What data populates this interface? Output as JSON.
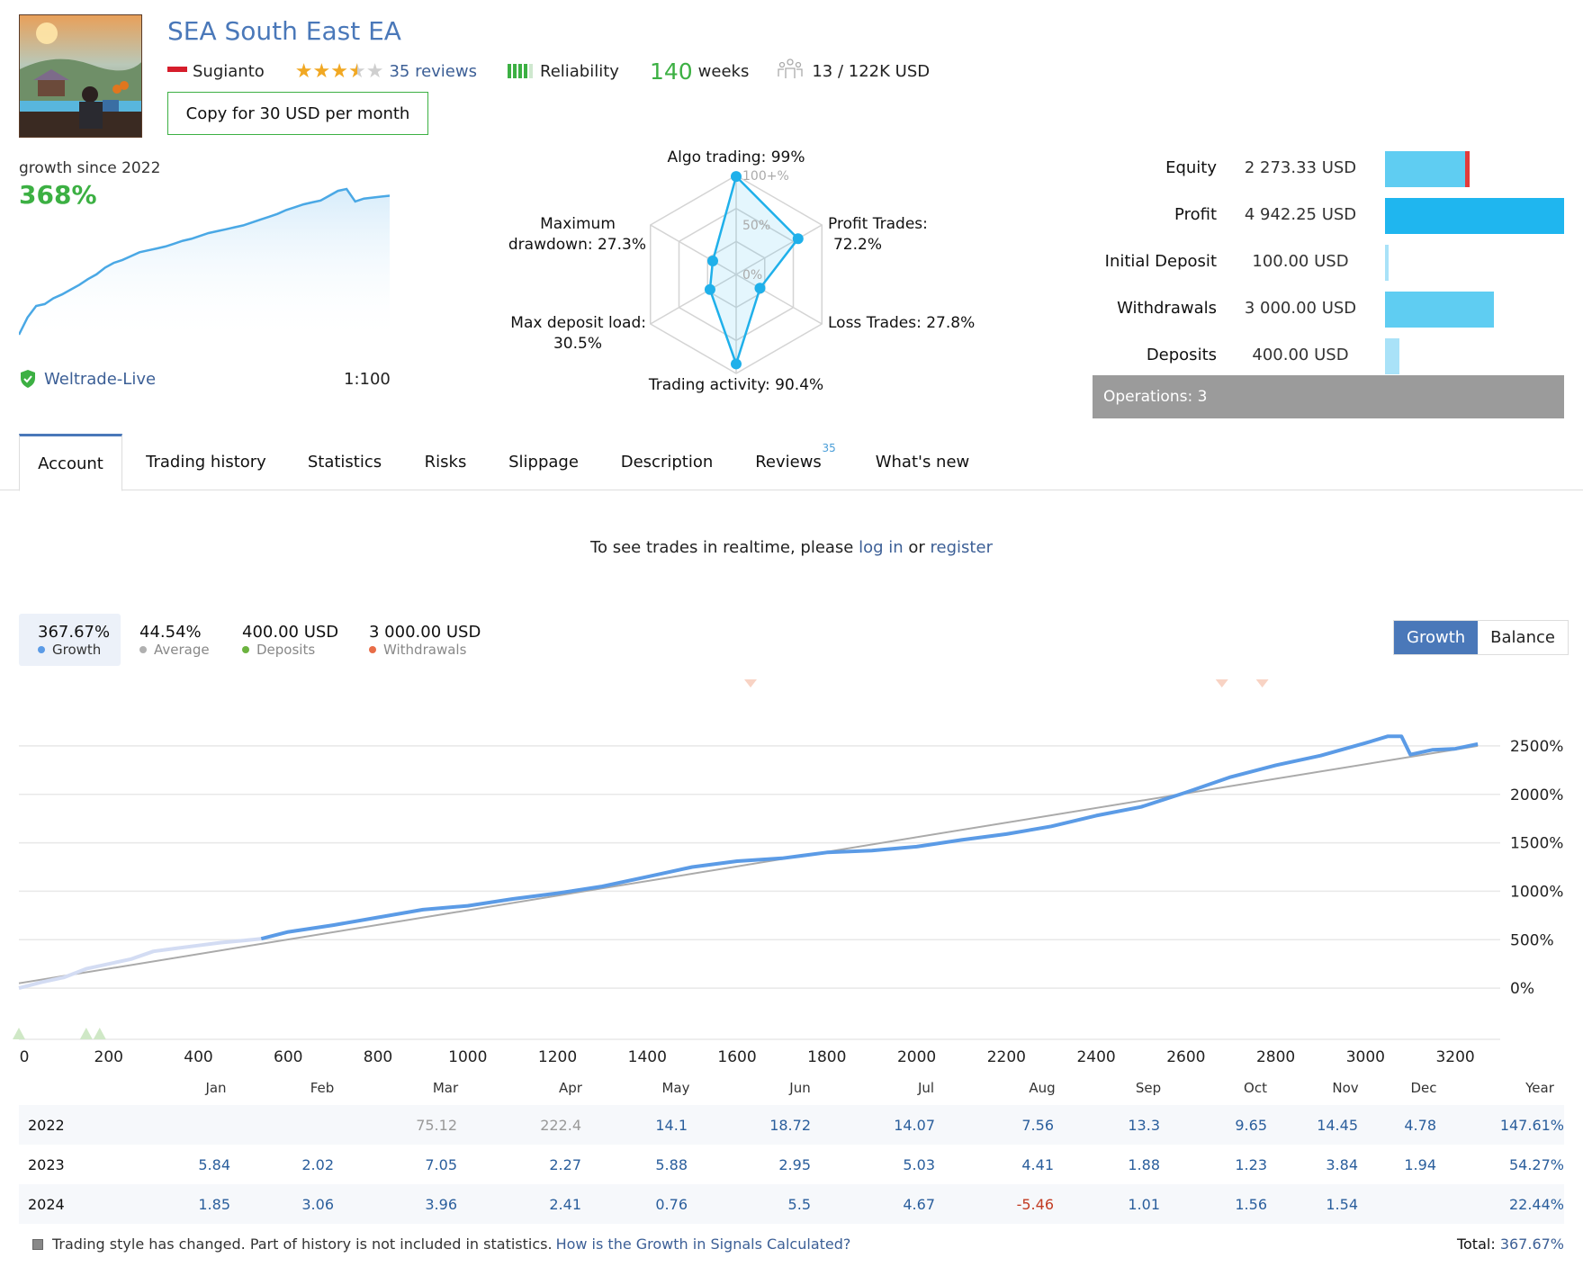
{
  "header": {
    "title": "SEA South East EA",
    "author": "Sugianto",
    "rating": 3.5,
    "reviews": "35 reviews",
    "reliability_label": "Reliability",
    "reliability_bars": {
      "filled": 4,
      "total": 5
    },
    "weeks_value": "140",
    "weeks_label": "weeks",
    "subscribers": "13 / 122K USD",
    "copy_button": "Copy for 30 USD per month"
  },
  "growth_mini": {
    "label": "growth since 2022",
    "value": "368%",
    "broker": "Weltrade-Live",
    "leverage": "1:100",
    "series": [
      0,
      18,
      30,
      32,
      38,
      42,
      47,
      52,
      58,
      63,
      70,
      75,
      78,
      82,
      86,
      88,
      90,
      92,
      95,
      98,
      100,
      103,
      106,
      108,
      110,
      112,
      114,
      117,
      120,
      123,
      126,
      130,
      133,
      136,
      138,
      140,
      145,
      150,
      152,
      139,
      142,
      143,
      144,
      145
    ]
  },
  "radar": {
    "scale": [
      "100+%",
      "50%",
      "0%"
    ],
    "axes": [
      {
        "label1": "Algo trading: 99%",
        "label2": "",
        "value": 99
      },
      {
        "label1": "Profit Trades:",
        "label2": "72.2%",
        "value": 72.2
      },
      {
        "label1": "Loss Trades: 27.8%",
        "label2": "",
        "value": 27.8
      },
      {
        "label1": "Trading activity: 90.4%",
        "label2": "",
        "value": 90.4
      },
      {
        "label1": "Max deposit load:",
        "label2": "30.5%",
        "value": 30.5
      },
      {
        "label1": "Maximum",
        "label2": "drawdown: 27.3%",
        "value": 27.3
      }
    ]
  },
  "stats": [
    {
      "label": "Equity",
      "value": "2 273.33 USD",
      "fraction": 0.46,
      "color": "#5fcdf2",
      "marker": "#e33b3b"
    },
    {
      "label": "Profit",
      "value": "4 942.25 USD",
      "fraction": 1.0,
      "color": "#1fb6ef"
    },
    {
      "label": "Initial Deposit",
      "value": "100.00 USD",
      "fraction": 0.02,
      "color": "#a9e2f8"
    },
    {
      "label": "Withdrawals",
      "value": "3 000.00 USD",
      "fraction": 0.61,
      "color": "#5fcdf2"
    },
    {
      "label": "Deposits",
      "value": "400.00 USD",
      "fraction": 0.08,
      "color": "#a9e2f8"
    }
  ],
  "operations": "Operations: 3",
  "tabs": [
    {
      "label": "Account",
      "active": true
    },
    {
      "label": "Trading history"
    },
    {
      "label": "Statistics"
    },
    {
      "label": "Risks"
    },
    {
      "label": "Slippage"
    },
    {
      "label": "Description"
    },
    {
      "label": "Reviews",
      "badge": "35"
    },
    {
      "label": "What's new"
    }
  ],
  "realtime": {
    "prefix": "To see trades in realtime, please ",
    "login": "log in",
    "or": " or ",
    "register": "register"
  },
  "summary": [
    {
      "value": "367.67%",
      "label": "Growth",
      "color": "#5b9be6",
      "active": true
    },
    {
      "value": "44.54%",
      "label": "Average",
      "color": "#b0b0b0"
    },
    {
      "value": "400.00 USD",
      "label": "Deposits",
      "color": "#6cb33f"
    },
    {
      "value": "3 000.00 USD",
      "label": "Withdrawals",
      "color": "#e86d48"
    }
  ],
  "toggle": {
    "growth": "Growth",
    "balance": "Balance"
  },
  "chart_data": {
    "type": "line",
    "title": "",
    "xlabel": "",
    "ylabel": "",
    "x_ticks": [
      0,
      200,
      400,
      600,
      800,
      1000,
      1200,
      1400,
      1600,
      1800,
      2000,
      2200,
      2400,
      2600,
      2800,
      3000,
      3200
    ],
    "y_ticks": [
      "0%",
      "500%",
      "1000%",
      "1500%",
      "2000%",
      "2500%"
    ],
    "xlim": [
      0,
      3300
    ],
    "ylim": [
      -250,
      2750
    ],
    "series": [
      {
        "name": "Growth (excluded history)",
        "color": "#d3dcf3",
        "x": [
          0,
          50,
          100,
          150,
          200,
          250,
          300,
          350,
          400,
          450,
          500,
          540
        ],
        "y": [
          0,
          60,
          110,
          200,
          250,
          300,
          380,
          410,
          440,
          470,
          490,
          510
        ]
      },
      {
        "name": "Growth",
        "color": "#5b9be6",
        "x": [
          540,
          600,
          700,
          800,
          900,
          1000,
          1100,
          1200,
          1300,
          1400,
          1450,
          1500,
          1600,
          1700,
          1800,
          1900,
          2000,
          2100,
          2200,
          2300,
          2400,
          2500,
          2600,
          2700,
          2800,
          2900,
          3000,
          3050,
          3080,
          3100,
          3150,
          3200,
          3250
        ],
        "y": [
          510,
          580,
          650,
          730,
          810,
          850,
          920,
          980,
          1050,
          1150,
          1200,
          1250,
          1310,
          1340,
          1400,
          1420,
          1460,
          1530,
          1590,
          1670,
          1780,
          1870,
          2020,
          2180,
          2300,
          2400,
          2530,
          2600,
          2600,
          2410,
          2460,
          2470,
          2520
        ]
      },
      {
        "name": "Trend",
        "color": "#aaaaaa",
        "x": [
          0,
          3250
        ],
        "y": [
          50,
          2500
        ]
      }
    ],
    "deposit_markers_x": [
      0,
      150,
      180
    ],
    "withdrawal_markers_x": [
      1630,
      2680,
      2770
    ],
    "month_labels": [
      "Jan",
      "Feb",
      "Mar",
      "Apr",
      "May",
      "Jun",
      "Jul",
      "Aug",
      "Sep",
      "Oct",
      "Nov",
      "Dec",
      "Year"
    ]
  },
  "yearly": [
    {
      "year": "2022",
      "months": [
        "",
        "",
        "75.12",
        "222.4",
        "14.1",
        "18.72",
        "14.07",
        "7.56",
        "13.3",
        "9.65",
        "14.45",
        "4.78"
      ],
      "dim_until": 4,
      "total": "147.61%"
    },
    {
      "year": "2023",
      "months": [
        "5.84",
        "2.02",
        "7.05",
        "2.27",
        "5.88",
        "2.95",
        "5.03",
        "4.41",
        "1.88",
        "1.23",
        "3.84",
        "1.94"
      ],
      "total": "54.27%"
    },
    {
      "year": "2024",
      "months": [
        "1.85",
        "3.06",
        "3.96",
        "2.41",
        "0.76",
        "5.5",
        "4.67",
        "-5.46",
        "1.01",
        "1.56",
        "1.54",
        ""
      ],
      "total": "22.44%"
    }
  ],
  "footnote": {
    "text": "Trading style has changed. Part of history is not included in statistics. ",
    "link": "How is the Growth in Signals Calculated?"
  },
  "total": {
    "label": "Total:",
    "value": "367.67%"
  }
}
